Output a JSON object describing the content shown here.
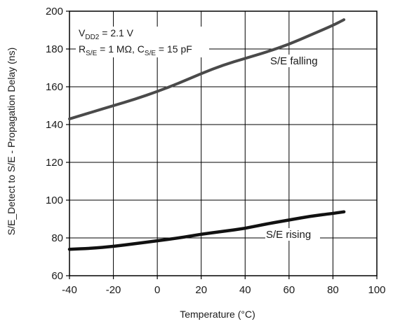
{
  "chart_data": {
    "type": "line",
    "xlabel": "Temperature (°C)",
    "ylabel": "S/E_Detect to S/E - Propagation Delay (ns)",
    "xlim": [
      -40,
      100
    ],
    "ylim": [
      60,
      200
    ],
    "x_ticks": [
      "-40",
      "-20",
      "0",
      "20",
      "40",
      "60",
      "80",
      "100"
    ],
    "y_ticks": [
      "60",
      "80",
      "100",
      "120",
      "140",
      "160",
      "180",
      "200"
    ],
    "grid": true,
    "conditions": {
      "line1": {
        "main": "V",
        "sub": "DD2",
        "rest": " = 2.1 V"
      },
      "line2": {
        "r_main": "R",
        "r_sub": "S/E",
        "r_rest": " = 1 MΩ, ",
        "c_main": "C",
        "c_sub": "S/E",
        "c_rest": " = 15 pF"
      }
    },
    "series": [
      {
        "name": "S/E falling",
        "color": "#4a4a4a",
        "x": [
          -40,
          -30,
          -20,
          -10,
          0,
          10,
          20,
          30,
          40,
          50,
          60,
          70,
          80,
          85
        ],
        "y": [
          143,
          146.5,
          150,
          153.5,
          157.5,
          162,
          167,
          171.5,
          175,
          178.5,
          182.5,
          187.5,
          192.5,
          195.5
        ]
      },
      {
        "name": "S/E rising",
        "color": "#111111",
        "x": [
          -40,
          -30,
          -20,
          -10,
          0,
          10,
          20,
          30,
          40,
          50,
          60,
          70,
          80,
          85
        ],
        "y": [
          74,
          74.5,
          75.5,
          77,
          78.5,
          80,
          82,
          83.5,
          85,
          87.5,
          89.5,
          91.5,
          93,
          93.8
        ]
      }
    ]
  }
}
